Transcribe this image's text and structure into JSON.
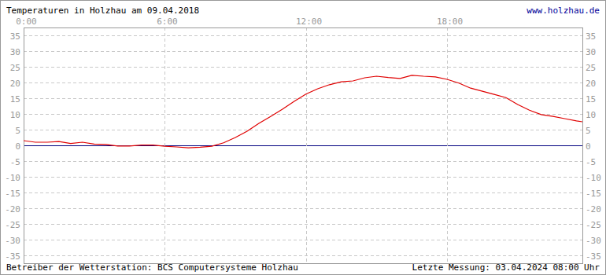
{
  "chart_data": {
    "type": "line",
    "title": "Temperaturen in Holzhau am 09.04.2018",
    "annotations": [
      "www.holzhau.de",
      "Betreiber der Wetterstation: BCS Computersysteme Holzhau",
      "Letzte Messung: 03.04.2024 08:00 Uhr"
    ],
    "x": [
      0,
      0.5,
      1,
      1.5,
      2,
      2.5,
      3,
      3.5,
      4,
      4.5,
      5,
      5.5,
      6,
      6.5,
      7,
      7.5,
      8,
      8.5,
      9,
      9.5,
      10,
      10.5,
      11,
      11.5,
      12,
      12.5,
      13,
      13.5,
      14,
      14.5,
      15,
      15.5,
      16,
      16.5,
      17,
      17.5,
      18,
      18.5,
      19,
      19.5,
      20,
      20.5,
      21,
      21.5,
      22,
      22.5,
      23,
      23.5,
      23.75
    ],
    "values": [
      1.5,
      1.0,
      1.0,
      1.2,
      0.6,
      1.0,
      0.4,
      0.3,
      -0.2,
      -0.2,
      0.1,
      0.1,
      -0.3,
      -0.5,
      -0.8,
      -0.6,
      -0.3,
      0.8,
      2.5,
      4.5,
      7.0,
      9.2,
      11.5,
      14.0,
      16.3,
      18.0,
      19.3,
      20.2,
      20.5,
      21.5,
      22.0,
      21.6,
      21.3,
      22.3,
      22.0,
      21.8,
      21.0,
      19.8,
      18.2,
      17.2,
      16.2,
      15.2,
      13.0,
      11.2,
      9.8,
      9.2,
      8.5,
      7.8,
      7.5
    ],
    "color": "#e00000",
    "xlim": [
      0,
      23.75
    ],
    "xticks": [
      {
        "value": 0,
        "label": "0:00"
      },
      {
        "value": 6,
        "label": "6:00"
      },
      {
        "value": 12,
        "label": "12:00"
      },
      {
        "value": 18,
        "label": "18:00"
      }
    ],
    "ylim": [
      -37.5,
      37.5
    ],
    "yticks": [
      -35,
      -30,
      -25,
      -20,
      -15,
      -10,
      -5,
      0,
      5,
      10,
      15,
      20,
      25,
      30,
      35
    ],
    "grid": true
  }
}
